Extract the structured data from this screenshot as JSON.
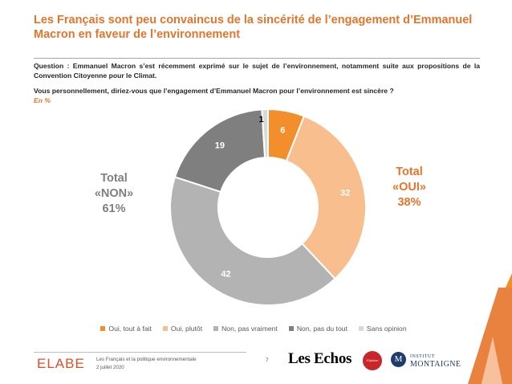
{
  "title": "Les Français sont peu convaincus de la sincérité de l’engagement d’Emmanuel Macron en faveur de l’environnement",
  "question": {
    "intro": "Question : Emmanuel Macron s’est récemment exprimé sur le sujet de l’environnement, notamment suite aux propositions de la Convention Citoyenne pour le Climat.",
    "text": "Vous personnellement, diriez-vous que l’engagement d’Emmanuel Macron pour l’environnement est sincère ?",
    "unit": "En %"
  },
  "totals": {
    "non": [
      "Total",
      "«NON»",
      "61%"
    ],
    "oui": [
      "Total",
      "«OUI»",
      "38%"
    ]
  },
  "colors": {
    "title": "#e8742a",
    "oui_tout_a_fait": "#f28e2b",
    "oui_plutot": "#f8be8e",
    "non_pas_vraiment": "#b3b3b3",
    "non_pas_du_tout": "#7f7f7f",
    "sans_opinion": "#d9d9d9"
  },
  "chart_data": {
    "type": "pie",
    "donut": true,
    "start_angle": "top, clockwise",
    "categories": [
      "Oui, tout à fait",
      "Oui, plutôt",
      "Non, pas vraiment",
      "Non, pas du tout",
      "Sans opinion"
    ],
    "values": [
      6,
      32,
      42,
      19,
      1
    ],
    "labels": [
      "6",
      "32",
      "42",
      "19",
      "1"
    ],
    "colors": [
      "#f28e2b",
      "#f8be8e",
      "#b3b3b3",
      "#7f7f7f",
      "#d9d9d9"
    ],
    "legend_position": "bottom"
  },
  "footer": {
    "brand": "ELABE",
    "line1": "Les Français et la politique environnementale",
    "line2": "2 juillet 2020",
    "page": "7",
    "partner1": "Les Echos",
    "partner2": "l'Opinion",
    "partner3_line1": "INSTITUT",
    "partner3_line2": "MONTAIGNE",
    "partner3_mark": "M"
  }
}
